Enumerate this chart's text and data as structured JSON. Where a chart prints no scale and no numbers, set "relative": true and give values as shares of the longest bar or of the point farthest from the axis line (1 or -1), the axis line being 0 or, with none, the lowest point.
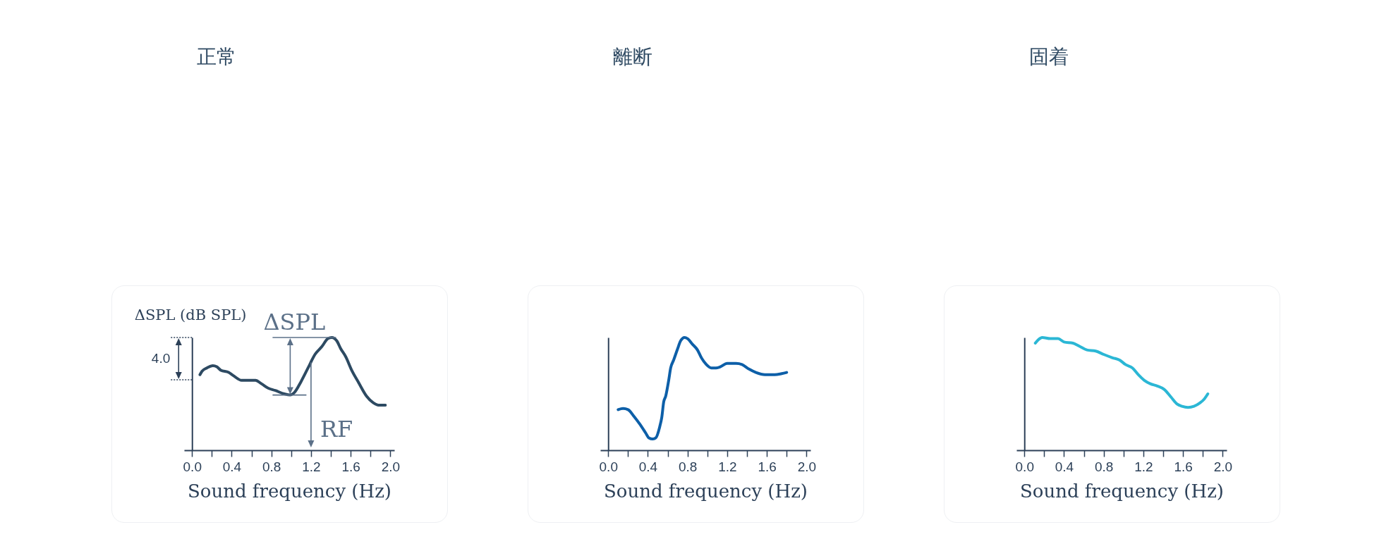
{
  "chart_data": [
    {
      "type": "line",
      "title": "正常",
      "ylabel": "ΔSPL (dB SPL)",
      "xlabel": "Sound frequency (Hz)",
      "relative": true,
      "x": [
        0.08,
        0.1,
        0.15,
        0.21,
        0.25,
        0.29,
        0.37,
        0.42,
        0.5,
        0.58,
        0.64,
        0.7,
        0.77,
        0.84,
        0.93,
        0.99,
        1.03,
        1.1,
        1.17,
        1.24,
        1.31,
        1.37,
        1.41,
        1.46,
        1.5,
        1.55,
        1.61,
        1.68,
        1.76,
        1.83,
        1.88,
        1.95
      ],
      "series": [
        {
          "color": "#2d4a62",
          "values": [
            0.67,
            0.7,
            0.73,
            0.75,
            0.74,
            0.71,
            0.69,
            0.66,
            0.62,
            0.62,
            0.62,
            0.59,
            0.55,
            0.53,
            0.5,
            0.49,
            0.51,
            0.61,
            0.73,
            0.85,
            0.92,
            0.99,
            1,
            0.97,
            0.9,
            0.83,
            0.71,
            0.6,
            0.48,
            0.42,
            0.4,
            0.4
          ]
        }
      ],
      "xlim": [
        -0.08,
        2.04
      ],
      "xticks": [
        {
          "value": 0,
          "label": "0.0"
        },
        {
          "value": 0.2,
          "label": null
        },
        0.4,
        {
          "value": 0.6,
          "label": null
        },
        0.8,
        {
          "value": 1,
          "label": null
        },
        1.2,
        {
          "value": 1.4,
          "label": null
        },
        1.6,
        {
          "value": 1.8,
          "label": null
        },
        {
          "value": 2,
          "label": "2.0"
        }
      ],
      "annotations": [
        "4.0",
        {
          "text": "ΔSPL",
          "x": 0.99,
          "y": 0.49
        },
        {
          "text": "RF",
          "x": 1.2,
          "y": 0.78
        }
      ]
    },
    {
      "type": "line",
      "title": "離断",
      "xlabel": "Sound frequency (Hz)",
      "relative": true,
      "x": [
        0.1,
        0.15,
        0.2,
        0.26,
        0.32,
        0.38,
        0.41,
        0.45,
        0.48,
        0.52,
        0.54,
        0.56,
        0.58,
        0.61,
        0.63,
        0.66,
        0.7,
        0.73,
        0.77,
        0.8,
        0.85,
        0.9,
        0.94,
        0.99,
        1.04,
        1.09,
        1.13,
        1.2,
        1.29,
        1.35,
        1.42,
        1.49,
        1.58,
        1.68,
        1.75,
        1.8
      ],
      "series": [
        {
          "color": "#0d5fa8",
          "values": [
            0.36,
            0.37,
            0.36,
            0.3,
            0.23,
            0.15,
            0.11,
            0.1,
            0.11,
            0.21,
            0.29,
            0.43,
            0.48,
            0.62,
            0.73,
            0.8,
            0.9,
            0.97,
            1,
            0.99,
            0.94,
            0.89,
            0.82,
            0.76,
            0.73,
            0.73,
            0.74,
            0.77,
            0.77,
            0.76,
            0.72,
            0.69,
            0.67,
            0.67,
            0.68,
            0.69
          ]
        }
      ],
      "xlim": [
        -0.08,
        2.04
      ],
      "xticks": [
        {
          "value": 0,
          "label": "0.0"
        },
        {
          "value": 0.2,
          "label": null
        },
        0.4,
        {
          "value": 0.6,
          "label": null
        },
        0.8,
        {
          "value": 1,
          "label": null
        },
        1.2,
        {
          "value": 1.4,
          "label": null
        },
        1.6,
        {
          "value": 1.8,
          "label": null
        },
        {
          "value": 2,
          "label": "2.0"
        }
      ]
    },
    {
      "type": "line",
      "title": "固着",
      "xlabel": "Sound frequency (Hz)",
      "relative": true,
      "x": [
        0.11,
        0.14,
        0.18,
        0.26,
        0.34,
        0.4,
        0.49,
        0.56,
        0.63,
        0.72,
        0.8,
        0.89,
        0.96,
        1.02,
        1.09,
        1.15,
        1.21,
        1.27,
        1.34,
        1.41,
        1.48,
        1.54,
        1.59,
        1.65,
        1.71,
        1.77,
        1.81,
        1.85
      ],
      "series": [
        {
          "color": "#2bb7d5",
          "values": [
            0.95,
            0.98,
            1,
            0.99,
            0.99,
            0.96,
            0.95,
            0.92,
            0.89,
            0.88,
            0.85,
            0.82,
            0.8,
            0.76,
            0.73,
            0.67,
            0.62,
            0.59,
            0.57,
            0.54,
            0.47,
            0.41,
            0.39,
            0.38,
            0.39,
            0.42,
            0.45,
            0.5
          ]
        }
      ],
      "xlim": [
        -0.08,
        2.04
      ],
      "xticks": [
        {
          "value": 0,
          "label": "0.0"
        },
        {
          "value": 0.2,
          "label": null
        },
        0.4,
        {
          "value": 0.6,
          "label": null
        },
        0.8,
        {
          "value": 1,
          "label": null
        },
        1.2,
        {
          "value": 1.4,
          "label": null
        },
        1.6,
        {
          "value": 1.8,
          "label": null
        },
        {
          "value": 2,
          "label": "2.0"
        }
      ]
    }
  ]
}
